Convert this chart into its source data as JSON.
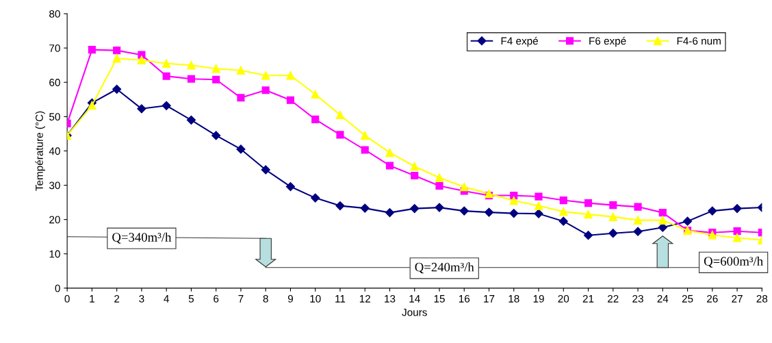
{
  "chart_data": {
    "type": "line",
    "xlabel": "Jours",
    "ylabel": "Température (°C)",
    "x": [
      0,
      1,
      2,
      3,
      4,
      5,
      6,
      7,
      8,
      9,
      10,
      11,
      12,
      13,
      14,
      15,
      16,
      17,
      18,
      19,
      20,
      21,
      22,
      23,
      24,
      25,
      26,
      27,
      28
    ],
    "xlim": [
      0,
      28
    ],
    "xticks": [
      0,
      1,
      2,
      3,
      4,
      5,
      6,
      7,
      8,
      9,
      10,
      11,
      12,
      13,
      14,
      15,
      16,
      17,
      18,
      19,
      20,
      21,
      22,
      23,
      24,
      25,
      26,
      27,
      28
    ],
    "ylim": [
      0,
      80
    ],
    "yticks": [
      0,
      10,
      20,
      30,
      40,
      50,
      60,
      70,
      80
    ],
    "grid": false,
    "legend": "top right",
    "series": [
      {
        "name": "F4 expé",
        "color": "#000080",
        "marker": "diamond",
        "values": [
          44.5,
          54,
          58,
          52.3,
          53.2,
          49,
          44.5,
          40.5,
          34.5,
          29.6,
          26.3,
          24,
          23.3,
          22,
          23.2,
          23.5,
          22.5,
          22.1,
          21.8,
          21.7,
          19.5,
          15.4,
          16,
          16.5,
          17.7,
          19.5,
          22.5,
          23.2,
          23.5
        ]
      },
      {
        "name": "F6 expé",
        "color": "#ff00ff",
        "marker": "square",
        "values": [
          48,
          69.5,
          69.3,
          68,
          61.8,
          61,
          60.8,
          55.5,
          57.7,
          54.8,
          49.2,
          44.7,
          40.3,
          35.7,
          32.8,
          29.8,
          28.3,
          27,
          27,
          26.7,
          25.6,
          24.8,
          24.2,
          23.7,
          22,
          16.8,
          16.2,
          16.6,
          16.2
        ]
      },
      {
        "name": "F4-6 num",
        "color": "#ffff00",
        "marker": "triangle",
        "values": [
          44.5,
          53.3,
          67,
          66.5,
          65.5,
          65,
          64,
          63.5,
          62,
          62,
          56.5,
          50.5,
          44.5,
          39.5,
          35.5,
          32.2,
          29.5,
          27.5,
          25.5,
          24,
          22.3,
          21.5,
          20.8,
          19.8,
          19.8,
          16.8,
          15.5,
          14.7,
          14
        ]
      }
    ],
    "annotations": [
      "Q=340m³/h",
      "Q=240m³/h",
      "Q=600m³/h"
    ]
  }
}
